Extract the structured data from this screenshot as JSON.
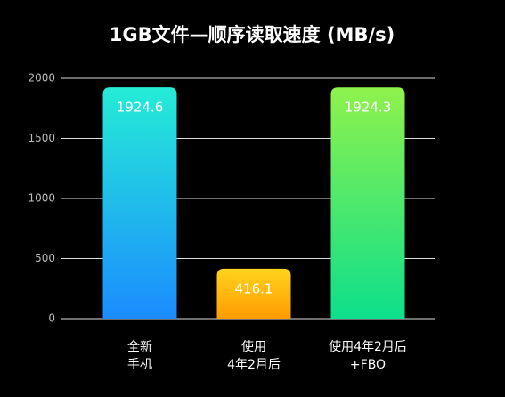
{
  "chart_data": {
    "type": "bar",
    "title": "1GB文件—顺序读取速度 (MB/s)",
    "categories": [
      [
        "全新",
        "手机"
      ],
      [
        "使用",
        "4年2月后"
      ],
      [
        "使用4年2月后",
        "+FBO"
      ]
    ],
    "values": [
      1924.6,
      416.1,
      1924.3
    ],
    "colors": [
      [
        "#25ecd6",
        "#1b8cff"
      ],
      [
        "#ffd41e",
        "#ff9c00"
      ],
      [
        "#8ff24c",
        "#0ddf8c"
      ]
    ],
    "ylim": [
      0,
      2000
    ],
    "yticks": [
      0,
      500,
      1000,
      1500,
      2000
    ],
    "grid": true
  }
}
